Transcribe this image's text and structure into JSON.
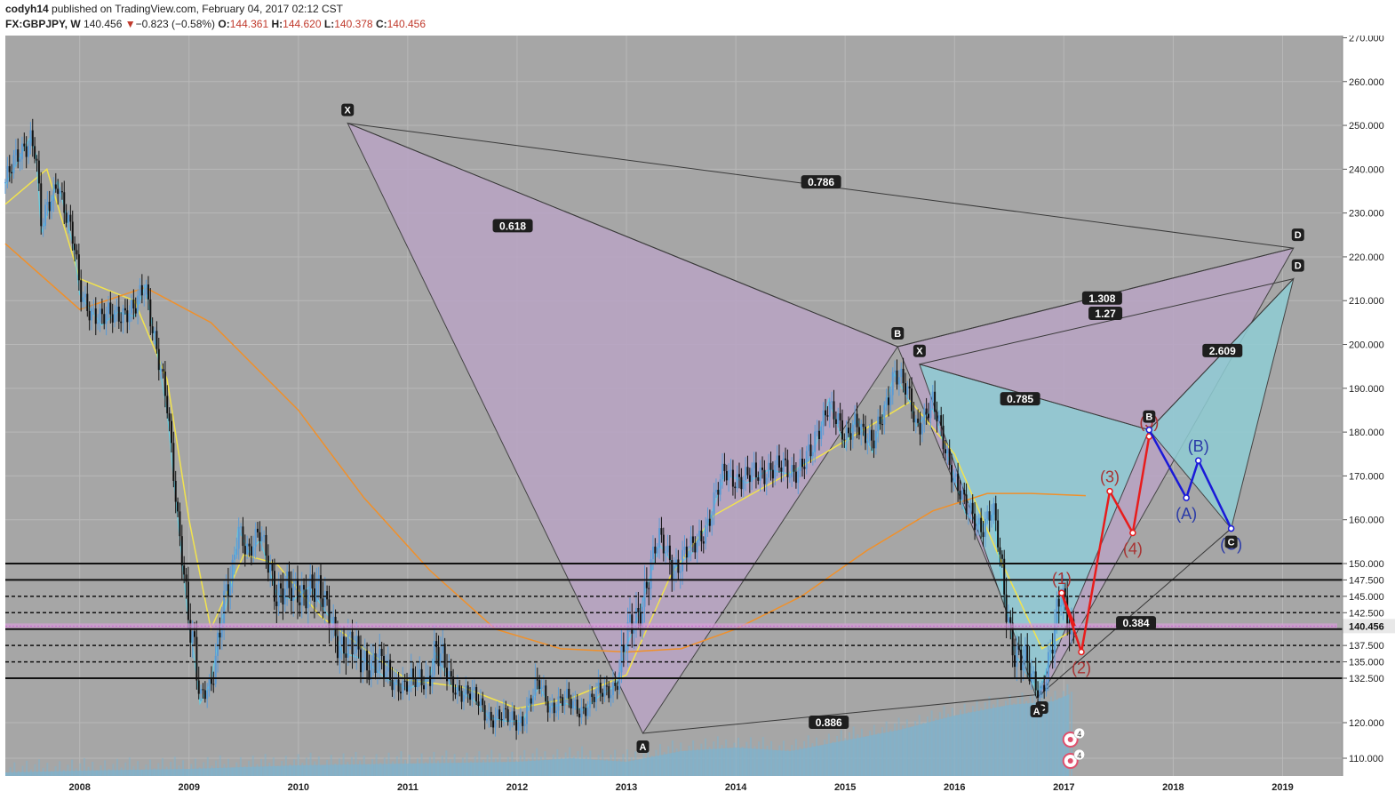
{
  "header": {
    "author": "codyh14",
    "published_text": "published on TradingView.com, February 04, 2017 02:12 CST",
    "symbol": "FX:GBPJPY, W",
    "last": "140.456",
    "change_arrow": "▼",
    "change": "−0.823 (−0.58%)",
    "open_label": "O:",
    "open": "144.361",
    "high_label": "H:",
    "high": "144.620",
    "low_label": "L:",
    "low": "140.378",
    "close_label": "C:",
    "close": "140.456"
  },
  "colors": {
    "background": "#a6a6a6",
    "pattern_purple": "#b9a4c4",
    "pattern_teal": "#8fcdd4",
    "up_candle": "#5b9bd5",
    "down_candle": "#111111",
    "ma_yellow": "#f2e34d",
    "ma_orange": "#f0902a",
    "ma_cyan": "#5fd3e8",
    "wave_red": "#e81c1c",
    "wave_blue": "#1a1ad8",
    "last_price": "#e8e8e8",
    "volume": "#7fb2cc"
  },
  "chart_data": {
    "type": "candlestick",
    "symbol": "FX:GBPJPY",
    "interval": "W",
    "x_axis": {
      "tick_labels": [
        "2008",
        "2009",
        "2010",
        "2011",
        "2012",
        "2013",
        "2014",
        "2015",
        "2016",
        "2017",
        "2018",
        "2019"
      ],
      "range": [
        2007.32,
        2019.5
      ]
    },
    "y_axis": {
      "tick_values": [
        270,
        260,
        250,
        240,
        230,
        220,
        210,
        200,
        190,
        180,
        170,
        160,
        150,
        147.5,
        145,
        142.5,
        140,
        137.5,
        135,
        132.5,
        120,
        110
      ],
      "tick_labels": [
        "270.000",
        "260.000",
        "250.000",
        "240.000",
        "230.000",
        "220.000",
        "210.000",
        "200.000",
        "190.000",
        "180.000",
        "170.000",
        "160.000",
        "150.000",
        "147.500",
        "145.000",
        "142.500",
        "140.000",
        "137.500",
        "135.000",
        "132.500",
        "120.000",
        "110.000"
      ],
      "range": [
        105,
        270.5
      ],
      "side": "right"
    },
    "price_path": [
      [
        2007.32,
        237
      ],
      [
        2007.55,
        248
      ],
      [
        2007.6,
        244
      ],
      [
        2007.65,
        226
      ],
      [
        2007.8,
        238
      ],
      [
        2007.95,
        222
      ],
      [
        2008.0,
        212
      ],
      [
        2008.2,
        205
      ],
      [
        2008.35,
        208
      ],
      [
        2008.5,
        207
      ],
      [
        2008.6,
        214
      ],
      [
        2008.7,
        200
      ],
      [
        2008.8,
        185
      ],
      [
        2008.9,
        160
      ],
      [
        2009.0,
        141
      ],
      [
        2009.05,
        136
      ],
      [
        2009.1,
        126
      ],
      [
        2009.2,
        132
      ],
      [
        2009.3,
        142
      ],
      [
        2009.4,
        148
      ],
      [
        2009.45,
        159
      ],
      [
        2009.55,
        153
      ],
      [
        2009.65,
        156
      ],
      [
        2009.8,
        146
      ],
      [
        2009.95,
        145
      ],
      [
        2010.1,
        147
      ],
      [
        2010.3,
        142
      ],
      [
        2010.4,
        137
      ],
      [
        2010.6,
        136
      ],
      [
        2010.8,
        133
      ],
      [
        2011.0,
        130
      ],
      [
        2011.2,
        133
      ],
      [
        2011.25,
        137
      ],
      [
        2011.4,
        131
      ],
      [
        2011.6,
        127
      ],
      [
        2011.75,
        122
      ],
      [
        2011.9,
        121
      ],
      [
        2012.05,
        121
      ],
      [
        2012.2,
        131
      ],
      [
        2012.3,
        125
      ],
      [
        2012.45,
        126
      ],
      [
        2012.6,
        124
      ],
      [
        2012.75,
        128
      ],
      [
        2012.9,
        131
      ],
      [
        2013.0,
        138
      ],
      [
        2013.1,
        142
      ],
      [
        2013.3,
        155
      ],
      [
        2013.45,
        150
      ],
      [
        2013.6,
        153
      ],
      [
        2013.75,
        160
      ],
      [
        2013.9,
        171
      ],
      [
        2014.1,
        169
      ],
      [
        2014.3,
        172
      ],
      [
        2014.5,
        171
      ],
      [
        2014.7,
        175
      ],
      [
        2014.85,
        188
      ],
      [
        2015.0,
        177
      ],
      [
        2015.1,
        184
      ],
      [
        2015.25,
        176
      ],
      [
        2015.35,
        185
      ],
      [
        2015.45,
        194
      ],
      [
        2015.6,
        187
      ],
      [
        2015.65,
        182
      ],
      [
        2015.8,
        186
      ],
      [
        2015.95,
        174
      ],
      [
        2016.1,
        162
      ],
      [
        2016.25,
        159
      ],
      [
        2016.35,
        162
      ],
      [
        2016.45,
        146
      ],
      [
        2016.55,
        137
      ],
      [
        2016.65,
        134
      ],
      [
        2016.78,
        129
      ],
      [
        2016.9,
        138
      ],
      [
        2016.98,
        145
      ],
      [
        2017.06,
        141
      ],
      [
        2017.1,
        140.456
      ]
    ],
    "moving_averages": [
      {
        "color": "yellow",
        "points": [
          [
            2007.32,
            232
          ],
          [
            2007.7,
            240
          ],
          [
            2008.0,
            215
          ],
          [
            2008.5,
            210
          ],
          [
            2008.8,
            192
          ],
          [
            2009.0,
            160
          ],
          [
            2009.2,
            140
          ],
          [
            2009.5,
            152
          ],
          [
            2009.8,
            150
          ],
          [
            2010.2,
            142
          ],
          [
            2010.6,
            137
          ],
          [
            2011.0,
            132
          ],
          [
            2011.5,
            130
          ],
          [
            2012.0,
            124
          ],
          [
            2012.5,
            127
          ],
          [
            2013.0,
            133
          ],
          [
            2013.4,
            148
          ],
          [
            2013.8,
            161
          ],
          [
            2014.3,
            168
          ],
          [
            2014.8,
            175
          ],
          [
            2015.2,
            181
          ],
          [
            2015.6,
            187
          ],
          [
            2016.0,
            175
          ],
          [
            2016.4,
            152
          ],
          [
            2016.8,
            137
          ],
          [
            2017.1,
            140
          ]
        ]
      },
      {
        "color": "orange",
        "points": [
          [
            2007.32,
            223
          ],
          [
            2008.0,
            208
          ],
          [
            2008.6,
            213
          ],
          [
            2009.2,
            205
          ],
          [
            2010.0,
            185
          ],
          [
            2010.6,
            165
          ],
          [
            2011.2,
            149
          ],
          [
            2011.8,
            140
          ],
          [
            2012.4,
            137
          ],
          [
            2013.0,
            136.5
          ],
          [
            2013.5,
            137
          ],
          [
            2014.0,
            140
          ],
          [
            2014.6,
            145
          ],
          [
            2015.2,
            153
          ],
          [
            2015.8,
            162
          ],
          [
            2016.3,
            166
          ],
          [
            2016.7,
            166
          ],
          [
            2017.2,
            165.5
          ]
        ]
      }
    ],
    "horizontal_levels": [
      {
        "price": 150.0,
        "style": "solid"
      },
      {
        "price": 147.5,
        "style": "solid"
      },
      {
        "price": 145.0,
        "style": "dashed"
      },
      {
        "price": 142.5,
        "style": "dashed"
      },
      {
        "price": 140.456,
        "style": "last_price"
      },
      {
        "price": 140.0,
        "style": "solid"
      },
      {
        "price": 137.5,
        "style": "dashed"
      },
      {
        "price": 135.0,
        "style": "dashed"
      },
      {
        "price": 132.5,
        "style": "solid"
      }
    ],
    "last_price_label": "140.456",
    "patterns": [
      {
        "fill": "purple",
        "points": [
          {
            "label": "X",
            "t": 2010.45,
            "p": 250.5
          },
          {
            "label": "A",
            "t": 2013.15,
            "p": 117
          },
          {
            "label": "B",
            "t": 2015.48,
            "p": 199.5
          },
          {
            "label": "C",
            "t": 2016.8,
            "p": 128
          },
          {
            "label": "D",
            "t": 2019.1,
            "p": 222
          }
        ],
        "ratios": [
          {
            "text": "0.618",
            "t": 2011.96,
            "p": 227
          },
          {
            "text": "0.786",
            "t": 2014.78,
            "p": 237
          },
          {
            "text": "0.886",
            "t": 2014.85,
            "p": 120
          },
          {
            "text": "1.308",
            "t": 2017.35,
            "p": 210.5
          }
        ]
      },
      {
        "fill": "teal",
        "points": [
          {
            "label": "X",
            "t": 2015.68,
            "p": 195.5
          },
          {
            "label": "A",
            "t": 2016.75,
            "p": 127
          },
          {
            "label": "B",
            "t": 2017.78,
            "p": 180.5
          },
          {
            "label": "C",
            "t": 2018.53,
            "p": 158
          },
          {
            "label": "D",
            "t": 2019.1,
            "p": 215
          }
        ],
        "ratios": [
          {
            "text": "0.785",
            "t": 2016.6,
            "p": 187.5
          },
          {
            "text": "1.27",
            "t": 2017.38,
            "p": 207
          },
          {
            "text": "2.609",
            "t": 2018.45,
            "p": 198.5
          },
          {
            "text": "0.384",
            "t": 2017.66,
            "p": 140.9
          }
        ]
      }
    ],
    "waves": [
      {
        "color": "red",
        "points": [
          {
            "label": "(1)",
            "t": 2016.98,
            "p": 145.5
          },
          {
            "label": "(2)",
            "t": 2017.16,
            "p": 136.5
          },
          {
            "label": "(3)",
            "t": 2017.42,
            "p": 166.5
          },
          {
            "label": "(4)",
            "t": 2017.63,
            "p": 157
          },
          {
            "label": "(5)",
            "t": 2017.78,
            "p": 179
          }
        ]
      },
      {
        "color": "blue",
        "points": [
          {
            "label": "",
            "t": 2017.78,
            "p": 180.5
          },
          {
            "label": "(A)",
            "t": 2018.12,
            "p": 165
          },
          {
            "label": "(B)",
            "t": 2018.23,
            "p": 173.5
          },
          {
            "label": "(C)",
            "t": 2018.53,
            "p": 158
          }
        ]
      }
    ],
    "event_markers": [
      "4",
      "4"
    ],
    "volume_profile": [
      [
        2007.32,
        106
      ],
      [
        2008.0,
        106.5
      ],
      [
        2009.0,
        107
      ],
      [
        2010.0,
        108
      ],
      [
        2011.0,
        108.5
      ],
      [
        2012.0,
        109
      ],
      [
        2012.5,
        110
      ],
      [
        2013.0,
        109
      ],
      [
        2013.5,
        112
      ],
      [
        2014.0,
        113
      ],
      [
        2014.5,
        112
      ],
      [
        2015.0,
        115
      ],
      [
        2015.5,
        118
      ],
      [
        2016.0,
        122
      ],
      [
        2016.5,
        125
      ],
      [
        2016.9,
        126
      ],
      [
        2017.05,
        128
      ]
    ]
  }
}
